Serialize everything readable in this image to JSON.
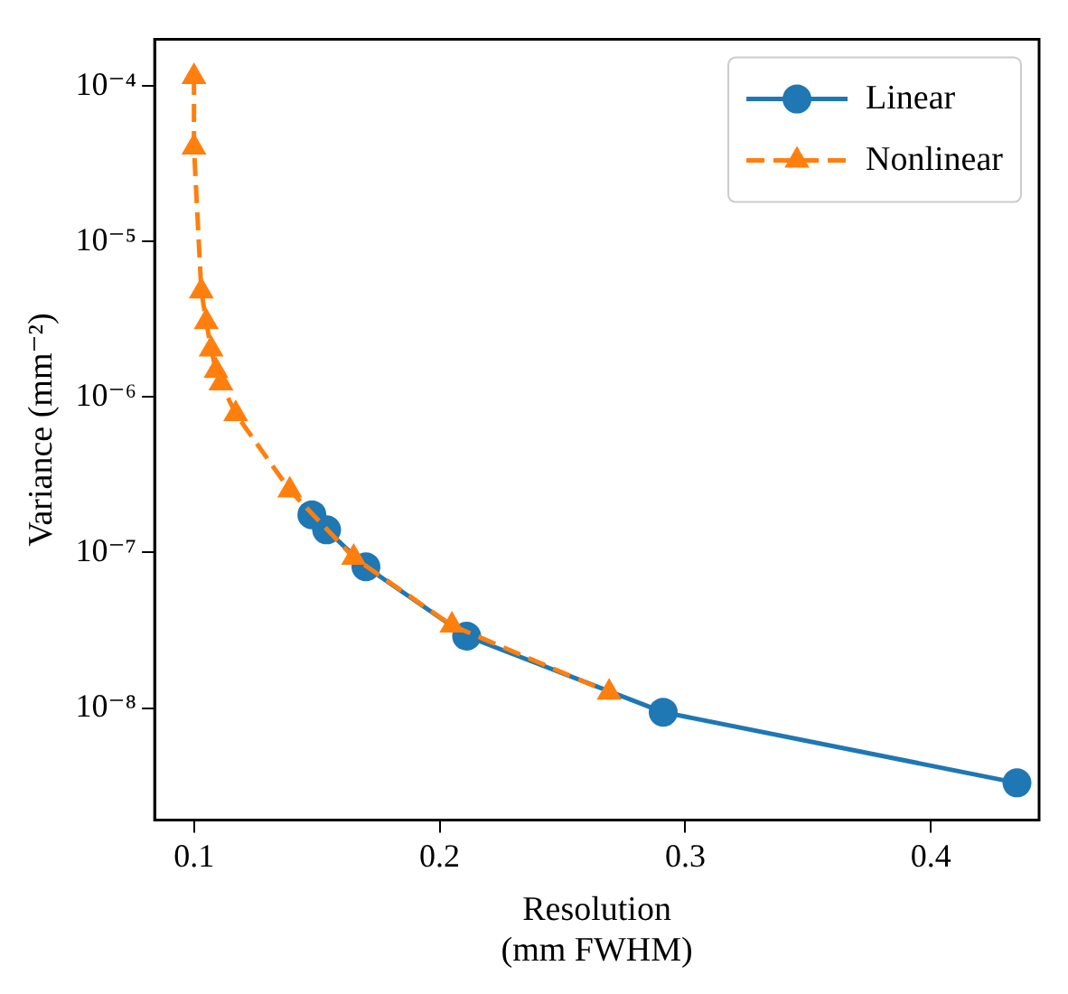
{
  "chart_data": {
    "type": "line",
    "xlabel": "Resolution\n(mm FWHM)",
    "ylabel": "Variance (mm⁻²)",
    "log": "y",
    "grid": false,
    "legend": "top right",
    "xlim": [
      0.084,
      0.444
    ],
    "xticks": [
      0.1,
      0.2,
      0.3,
      0.4
    ],
    "ylim": [
      1.9e-09,
      0.0002
    ],
    "yticks": [
      {
        "value": 1e-08,
        "label": "10⁻⁸"
      },
      {
        "value": 1e-07,
        "label": "10⁻⁷"
      },
      {
        "value": 1e-06,
        "label": "10⁻⁶"
      },
      {
        "value": 1e-05,
        "label": "10⁻⁵"
      },
      {
        "value": 0.0001,
        "label": "10⁻⁴"
      }
    ],
    "series": [
      {
        "name": "Linear",
        "color": "#1f77b4",
        "marker": "circle",
        "line_style": "solid",
        "x": [
          0.148,
          0.154,
          0.17,
          0.211,
          0.291,
          0.435
        ],
        "values": [
          1.75e-07,
          1.4e-07,
          8.1e-08,
          2.9e-08,
          9.4e-09,
          3.3e-09
        ]
      },
      {
        "name": "Nonlinear",
        "color": "#ff7f0e",
        "marker": "triangle",
        "line_style": "dashed",
        "x": [
          0.1,
          0.1,
          0.103,
          0.105,
          0.107,
          0.109,
          0.111,
          0.117,
          0.139,
          0.165,
          0.205,
          0.269
        ],
        "values": [
          0.000115,
          4.05e-05,
          4.8e-06,
          3.05e-06,
          2.03e-06,
          1.48e-06,
          1.23e-06,
          7.8e-07,
          2.52e-07,
          9.3e-08,
          3.4e-08,
          1.26e-08
        ]
      }
    ]
  }
}
